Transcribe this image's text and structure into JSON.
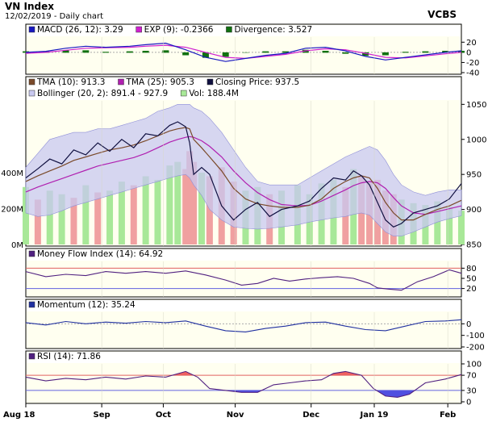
{
  "header": {
    "title": "VN Index",
    "subtitle": "12/02/2019 - Daily chart",
    "brand": "VCBS"
  },
  "colors": {
    "plot_bg": "#fffff0",
    "band_fill": "#c8c8f0",
    "tma10": "#7a4a2a",
    "tma25": "#b020b0",
    "close": "#101040",
    "vol_up": "#a8e898",
    "vol_down": "#f0a0a0",
    "macd": "#1818c0",
    "exp": "#d020d0",
    "div_bar": "#107010",
    "mfi": "#502080",
    "mom": "#2030a0",
    "rsi": "#502080",
    "rsi_fill_high": "#f06060",
    "rsi_fill_low": "#5050e0",
    "ref_high": "#e06060",
    "ref_low": "#6060e0"
  },
  "chart_data": [
    {
      "name": "MACD",
      "type": "line",
      "legend": [
        {
          "label": "MACD (26, 12): 3.29",
          "color": "#1818c0"
        },
        {
          "label": "EXP (9): -0.2366",
          "color": "#d020d0"
        },
        {
          "label": "Divergence: 3.527",
          "color": "#107010"
        }
      ],
      "ylim": [
        -40,
        30
      ],
      "yticks": [
        "20",
        "0",
        "-20",
        "-40"
      ],
      "yticks_values": [
        20,
        0,
        -20,
        -40
      ],
      "x": [
        0,
        25,
        50,
        75,
        100,
        130,
        150,
        175,
        200,
        225,
        250,
        275,
        300,
        325,
        350,
        375,
        400,
        425,
        450,
        475,
        500,
        525,
        545
      ],
      "macd": [
        0,
        2,
        8,
        12,
        10,
        12,
        15,
        18,
        5,
        -10,
        -18,
        -12,
        -6,
        -2,
        8,
        10,
        3,
        -8,
        -15,
        -10,
        -5,
        0,
        3
      ],
      "exp": [
        -2,
        0,
        4,
        8,
        9,
        10,
        12,
        14,
        10,
        0,
        -10,
        -12,
        -8,
        -4,
        3,
        7,
        5,
        -2,
        -10,
        -11,
        -7,
        -3,
        0
      ],
      "divergence": [
        2,
        2,
        4,
        4,
        1,
        2,
        3,
        4,
        -5,
        -10,
        -8,
        0,
        2,
        2,
        5,
        3,
        -2,
        -6,
        -5,
        1,
        2,
        3,
        3
      ]
    },
    {
      "name": "Price",
      "type": "line",
      "legend": [
        {
          "label": "TMA (10): 913.3",
          "color": "#7a4a2a"
        },
        {
          "label": "TMA (25): 905.3",
          "color": "#b020b0"
        },
        {
          "label": "Closing Price: 937.5",
          "color": "#101040"
        },
        {
          "label": "Bollinger (20, 2): 891.4 - 927.9",
          "color": "#c8c8f0"
        },
        {
          "label": "Vol: 188.4M",
          "color": "#a8e898"
        }
      ],
      "ylim": [
        850,
        1055
      ],
      "yticks": [
        "1050",
        "1000",
        "950",
        "900",
        "850"
      ],
      "yticks_values": [
        1050,
        1000,
        950,
        900,
        850
      ],
      "vol_ticks": [
        "400M",
        "200M",
        "0M"
      ],
      "vol_ticks_values": [
        400,
        200,
        0
      ],
      "vol_max": 800,
      "x": [
        0,
        15,
        30,
        45,
        60,
        75,
        90,
        105,
        120,
        135,
        150,
        165,
        180,
        190,
        200,
        205,
        210,
        220,
        230,
        245,
        260,
        275,
        290,
        305,
        320,
        340,
        355,
        370,
        385,
        400,
        410,
        420,
        430,
        440,
        450,
        460,
        470,
        485,
        500,
        515,
        530,
        545
      ],
      "close": [
        945,
        958,
        972,
        965,
        985,
        978,
        995,
        983,
        1000,
        988,
        1008,
        1005,
        1020,
        1025,
        1018,
        995,
        950,
        960,
        950,
        905,
        885,
        900,
        910,
        890,
        900,
        905,
        912,
        930,
        945,
        942,
        955,
        948,
        935,
        910,
        885,
        875,
        880,
        895,
        900,
        905,
        915,
        937
      ],
      "tma10": [
        940,
        948,
        955,
        962,
        970,
        975,
        980,
        985,
        988,
        992,
        998,
        1005,
        1012,
        1015,
        1017,
        1015,
        1000,
        988,
        975,
        955,
        930,
        915,
        908,
        905,
        903,
        903,
        906,
        915,
        930,
        940,
        945,
        948,
        945,
        930,
        910,
        895,
        885,
        885,
        893,
        900,
        905,
        913
      ],
      "tma25": [
        925,
        932,
        938,
        944,
        950,
        956,
        962,
        966,
        970,
        974,
        980,
        988,
        996,
        1000,
        1003,
        1004,
        1003,
        998,
        990,
        975,
        955,
        938,
        924,
        914,
        907,
        905,
        906,
        912,
        920,
        928,
        934,
        938,
        940,
        938,
        930,
        917,
        905,
        895,
        893,
        897,
        901,
        905
      ],
      "upper": [
        960,
        980,
        1000,
        1005,
        1010,
        1010,
        1015,
        1015,
        1020,
        1025,
        1030,
        1040,
        1045,
        1050,
        1050,
        1050,
        1045,
        1040,
        1030,
        1010,
        985,
        960,
        940,
        935,
        935,
        935,
        945,
        955,
        965,
        975,
        980,
        985,
        990,
        985,
        970,
        950,
        935,
        925,
        920,
        925,
        928,
        928
      ],
      "lower": [
        895,
        890,
        892,
        898,
        905,
        910,
        915,
        920,
        925,
        930,
        935,
        940,
        945,
        948,
        950,
        945,
        935,
        920,
        900,
        885,
        875,
        873,
        872,
        873,
        875,
        878,
        882,
        885,
        888,
        890,
        893,
        895,
        892,
        880,
        868,
        862,
        862,
        868,
        875,
        882,
        887,
        891
      ],
      "volume_up": [
        1,
        0,
        1,
        1,
        0,
        1,
        0,
        1,
        1,
        0,
        1,
        1,
        1,
        1,
        0,
        0,
        0,
        1,
        0,
        0,
        0,
        1,
        1,
        0,
        1,
        1,
        1,
        1,
        1,
        0,
        1,
        0,
        0,
        0,
        0,
        0,
        1,
        1,
        1,
        1,
        1,
        1
      ],
      "volume": [
        320,
        250,
        300,
        280,
        260,
        330,
        290,
        300,
        350,
        330,
        380,
        360,
        440,
        460,
        420,
        520,
        460,
        400,
        380,
        430,
        350,
        300,
        320,
        280,
        300,
        330,
        280,
        340,
        360,
        320,
        420,
        380,
        350,
        360,
        300,
        280,
        250,
        230,
        220,
        240,
        210,
        188
      ]
    },
    {
      "name": "MFI",
      "type": "line",
      "legend": [
        {
          "label": "Money Flow Index (14): 64.92",
          "color": "#502080"
        }
      ],
      "ylim": [
        0,
        100
      ],
      "yticks": [
        "80",
        "50",
        "20"
      ],
      "yticks_values": [
        80,
        50,
        20
      ],
      "x": [
        0,
        25,
        50,
        75,
        100,
        125,
        150,
        175,
        200,
        225,
        250,
        270,
        290,
        310,
        330,
        350,
        370,
        390,
        410,
        430,
        440,
        455,
        470,
        490,
        510,
        530,
        545
      ],
      "values": [
        70,
        55,
        62,
        58,
        70,
        65,
        70,
        65,
        72,
        60,
        45,
        30,
        35,
        50,
        42,
        48,
        52,
        55,
        50,
        35,
        22,
        18,
        15,
        40,
        55,
        75,
        65
      ]
    },
    {
      "name": "Momentum",
      "type": "line",
      "legend": [
        {
          "label": "Momentum (12): 35.24",
          "color": "#2030a0"
        }
      ],
      "ylim": [
        -200,
        100
      ],
      "yticks": [
        "0",
        "-100",
        "-200"
      ],
      "yticks_values": [
        0,
        -100,
        -200
      ],
      "x": [
        0,
        25,
        50,
        75,
        100,
        125,
        150,
        175,
        200,
        225,
        250,
        275,
        300,
        325,
        350,
        375,
        400,
        425,
        450,
        475,
        500,
        525,
        545
      ],
      "values": [
        10,
        -10,
        20,
        0,
        15,
        5,
        20,
        10,
        25,
        -20,
        -60,
        -70,
        -40,
        -20,
        10,
        15,
        -20,
        -50,
        -60,
        -20,
        20,
        25,
        35
      ]
    },
    {
      "name": "RSI",
      "type": "line",
      "legend": [
        {
          "label": "RSI (14): 71.86",
          "color": "#502080"
        }
      ],
      "ylim": [
        0,
        100
      ],
      "yticks": [
        "100",
        "70",
        "30",
        "0"
      ],
      "yticks_values": [
        100,
        70,
        30,
        0
      ],
      "x": [
        0,
        25,
        50,
        75,
        100,
        125,
        150,
        175,
        200,
        215,
        230,
        250,
        270,
        290,
        310,
        330,
        350,
        370,
        385,
        400,
        420,
        435,
        450,
        465,
        480,
        500,
        525,
        545
      ],
      "values": [
        65,
        55,
        62,
        58,
        65,
        60,
        68,
        65,
        80,
        65,
        35,
        30,
        25,
        25,
        45,
        50,
        55,
        58,
        75,
        80,
        70,
        35,
        15,
        12,
        20,
        50,
        60,
        72
      ]
    }
  ],
  "xaxis": {
    "labels": [
      "Aug 18",
      "Sep",
      "Oct",
      "Nov",
      "Dec",
      "Jan 19",
      "Feb"
    ],
    "positions": [
      0,
      95,
      172,
      262,
      357,
      436,
      528
    ]
  }
}
